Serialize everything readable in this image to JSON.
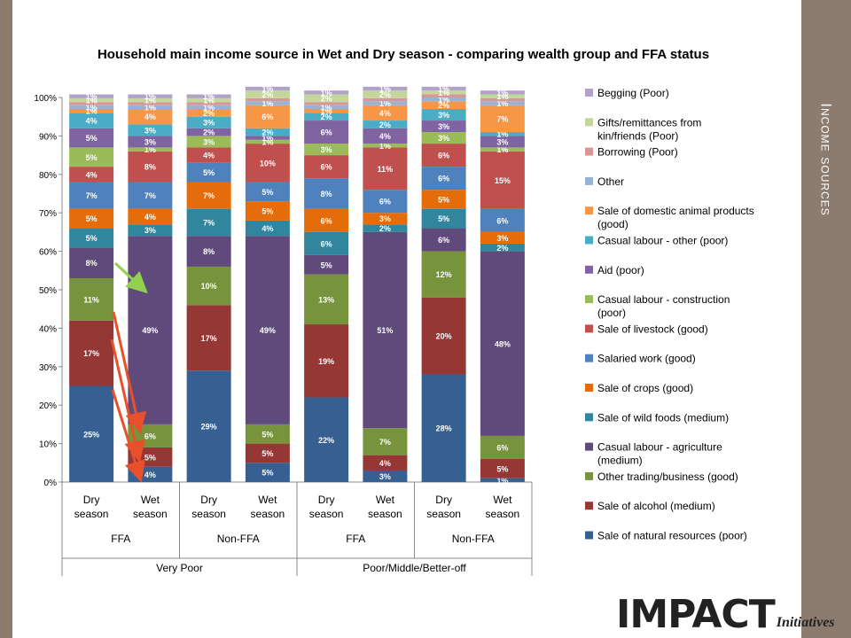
{
  "slide_title": "Income sources",
  "logo": {
    "main": "IMPACT",
    "sub": "Initiatives"
  },
  "colors": {
    "Begging (Poor)": "#b3a2c7",
    "Gifts/remittances from kin/friends (Poor)": "#c3d69b",
    "Borrowing (Poor)": "#d99694",
    "Other": "#95b3d7",
    "Sale of domestic animal products (good)": "#f79646",
    "Casual labour - other (poor)": "#4bacc6",
    "Aid (poor)": "#8064a2",
    "Casual labour - construction (poor)": "#9bbb59",
    "Sale of livestock (good)": "#c0504d",
    "Salaried work (good)": "#4f81bd",
    "Sale of crops (good)": "#e46c0a",
    "Sale of wild foods (medium)": "#31859c",
    "Casual labour - agriculture (medium)": "#604a7b",
    "Other trading/business (good)": "#77933c",
    "Sale of alcohol (medium)": "#953735",
    "Sale of natural resources (poor)": "#376092",
    "arrow_red": "#e8502c",
    "arrow_green": "#92d050"
  },
  "chart_data": {
    "type": "bar",
    "stacked": true,
    "title": "Household main income source in Wet and Dry season - comparing wealth group and FFA status",
    "ylim": [
      0,
      100
    ],
    "y_ticks": [
      "0%",
      "10%",
      "20%",
      "30%",
      "40%",
      "50%",
      "60%",
      "70%",
      "80%",
      "90%",
      "100%"
    ],
    "categories": [
      "Dry season",
      "Wet season",
      "Dry season",
      "Wet season",
      "Dry season",
      "Wet season",
      "Dry season",
      "Wet season"
    ],
    "group_level2": [
      {
        "label": "FFA",
        "span": 2
      },
      {
        "label": "Non-FFA",
        "span": 2
      },
      {
        "label": "FFA",
        "span": 2
      },
      {
        "label": "Non-FFA",
        "span": 2
      }
    ],
    "group_level3": [
      {
        "label": "Very Poor",
        "span": 4
      },
      {
        "label": "Poor/Middle/Better-off",
        "span": 4
      }
    ],
    "legend_position": "right",
    "series": [
      {
        "name": "Sale of natural resources (poor)",
        "values": [
          25,
          4,
          29,
          5,
          22,
          3,
          28,
          1
        ]
      },
      {
        "name": "Sale of alcohol (medium)",
        "values": [
          17,
          5,
          17,
          5,
          19,
          4,
          20,
          5
        ]
      },
      {
        "name": "Other trading/business (good)",
        "values": [
          11,
          6,
          10,
          5,
          13,
          7,
          12,
          6
        ]
      },
      {
        "name": "Casual labour - agriculture (medium)",
        "values": [
          8,
          49,
          8,
          49,
          5,
          51,
          6,
          48
        ]
      },
      {
        "name": "Sale of wild foods (medium)",
        "values": [
          5,
          3,
          7,
          4,
          6,
          2,
          5,
          2
        ]
      },
      {
        "name": "Sale of crops (good)",
        "values": [
          5,
          4,
          7,
          5,
          6,
          3,
          5,
          3
        ]
      },
      {
        "name": "Salaried work (good)",
        "values": [
          7,
          7,
          5,
          5,
          8,
          6,
          6,
          6
        ]
      },
      {
        "name": "Sale of livestock (good)",
        "values": [
          4,
          8,
          4,
          10,
          6,
          11,
          6,
          15
        ]
      },
      {
        "name": "Casual labour - construction (poor)",
        "values": [
          5,
          1,
          3,
          1,
          3,
          1,
          3,
          1
        ]
      },
      {
        "name": "Aid (poor)",
        "values": [
          5,
          3,
          2,
          1,
          6,
          4,
          3,
          3
        ]
      },
      {
        "name": "Casual labour - other (poor)",
        "values": [
          4,
          3,
          3,
          2,
          2,
          2,
          3,
          1
        ]
      },
      {
        "name": "Sale of domestic animal products (good)",
        "values": [
          1,
          4,
          2,
          6,
          1,
          4,
          2,
          7
        ]
      },
      {
        "name": "Other",
        "values": [
          1,
          1,
          1,
          1,
          1,
          1,
          1,
          1
        ]
      },
      {
        "name": "Borrowing (Poor)",
        "values": [
          0.8,
          0.8,
          0.8,
          0.8,
          0.8,
          0.8,
          0.8,
          0.8
        ]
      },
      {
        "name": "Gifts/remittances from kin/friends (Poor)",
        "values": [
          1,
          1,
          1,
          2,
          2,
          2,
          1,
          1
        ]
      },
      {
        "name": "Begging (Poor)",
        "values": [
          1,
          1,
          1,
          1,
          1,
          1,
          1,
          1
        ]
      }
    ],
    "label_threshold": 1,
    "legend_order": [
      "Begging (Poor)",
      "Gifts/remittances from kin/friends (Poor)",
      "Borrowing (Poor)",
      "Other",
      "Sale of domestic animal products (good)",
      "Casual labour - other (poor)",
      "Aid (poor)",
      "Casual labour - construction (poor)",
      "Sale of livestock (good)",
      "Salaried work (good)",
      "Sale of crops (good)",
      "Sale of wild foods (medium)",
      "Casual labour - agriculture (medium)",
      "Other trading/business (good)",
      "Sale of alcohol (medium)",
      "Sale of natural resources (poor)"
    ]
  }
}
